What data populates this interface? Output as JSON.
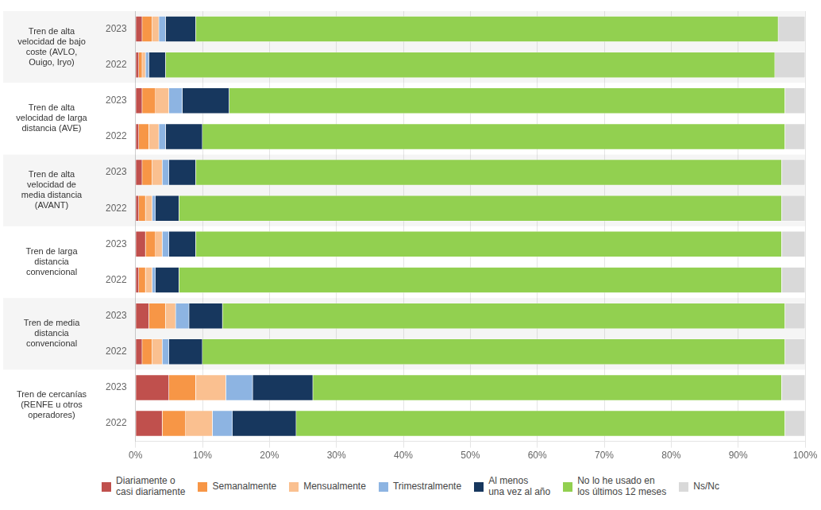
{
  "chart_data": {
    "type": "bar",
    "orientation": "horizontal",
    "stacked": true,
    "grid": "x",
    "legend": "bottom",
    "categories": [
      "2023",
      "2022",
      "2023",
      "2022",
      "2023",
      "2022",
      "2023",
      "2022",
      "2023",
      "2022",
      "2023",
      "2022"
    ],
    "groups": [
      "Tren de alta\nvelocidad de bajo\ncoste (AVLO,\nOuigo, Iryo)",
      "Tren de alta\nvelocidad de larga\ndistancia (AVE)",
      "Tren de alta\nvelocidad de\nmedia distancia\n(AVANT)",
      "Tren de larga\ndistancia\nconvencional",
      "Tren de media\ndistancia\nconvencional",
      "Tren de cercanías\n(RENFE u otros\noperadores)"
    ],
    "series": [
      {
        "name": "Diariamente o\ncasi diariamente",
        "color": "#c0504d",
        "values": [
          1.0,
          0.5,
          1.0,
          0.5,
          1.0,
          0.5,
          1.5,
          0.5,
          2.0,
          1.0,
          5.0,
          4.0
        ]
      },
      {
        "name": "Semanalmente",
        "color": "#f79646",
        "values": [
          1.5,
          0.5,
          2.0,
          1.5,
          1.5,
          1.0,
          1.5,
          1.0,
          2.5,
          1.5,
          4.0,
          3.5
        ]
      },
      {
        "name": "Mensualmente",
        "color": "#fac090",
        "values": [
          1.0,
          0.5,
          2.0,
          1.5,
          1.5,
          1.0,
          1.0,
          1.0,
          1.5,
          1.5,
          4.5,
          4.0
        ]
      },
      {
        "name": "Trimestralmente",
        "color": "#8db4e2",
        "values": [
          1.0,
          0.5,
          2.0,
          1.0,
          1.0,
          0.5,
          1.0,
          0.5,
          2.0,
          1.0,
          4.0,
          3.0
        ]
      },
      {
        "name": "Al menos\nuna vez al año",
        "color": "#17375e",
        "values": [
          4.5,
          2.5,
          7.0,
          5.5,
          4.0,
          3.5,
          4.0,
          3.5,
          5.0,
          5.0,
          9.0,
          9.5
        ]
      },
      {
        "name": "No lo he usado en\nlos últimos 12 meses",
        "color": "#92d050",
        "values": [
          87.0,
          91.0,
          83.0,
          87.0,
          87.5,
          90.0,
          87.5,
          90.0,
          84.0,
          87.0,
          70.0,
          73.0
        ]
      },
      {
        "name": "Ns/Nc",
        "color": "#d9d9d9",
        "values": [
          4.0,
          4.5,
          3.0,
          3.0,
          3.5,
          3.5,
          3.5,
          3.5,
          3.0,
          3.0,
          3.5,
          3.0
        ]
      }
    ],
    "xlim": [
      0,
      100
    ],
    "xticks": [
      {
        "value": 0,
        "label": "0%"
      },
      {
        "value": 10,
        "label": "10%"
      },
      {
        "value": 20,
        "label": "20%"
      },
      {
        "value": 30,
        "label": "30%"
      },
      {
        "value": 40,
        "label": "40%"
      },
      {
        "value": 50,
        "label": "50%"
      },
      {
        "value": 60,
        "label": "60%"
      },
      {
        "value": 70,
        "label": "70%"
      },
      {
        "value": 80,
        "label": "80%"
      },
      {
        "value": 90,
        "label": "90%"
      },
      {
        "value": 100,
        "label": "100%"
      }
    ]
  }
}
